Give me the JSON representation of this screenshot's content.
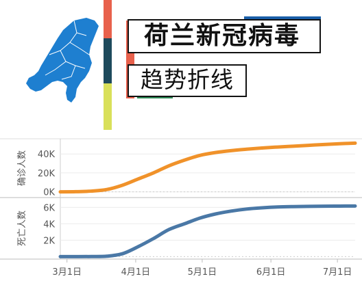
{
  "header": {
    "title": "荷兰新冠病毒",
    "subtitle": "趋势折线"
  },
  "colors": {
    "confirmed": "#f0922a",
    "deaths": "#4a78a6",
    "map": "#1e7fd0",
    "bar_red": "#e8614c",
    "bar_navy": "#1e4a5c",
    "bar_green": "#d9e05a",
    "accent_blue": "#1a5fa8",
    "accent_green": "#2e8b57"
  },
  "chart_data": [
    {
      "type": "line",
      "ylabel": "确诊人数",
      "yticks": [
        0,
        20000,
        40000
      ],
      "ytick_labels": [
        "0K",
        "20K",
        "40K"
      ],
      "ylim": [
        -6000,
        56000
      ],
      "xlim": [
        "2020-02-27",
        "2020-07-09"
      ],
      "series": [
        {
          "x": [
            "2020-02-27",
            "2020-03-05",
            "2020-03-12",
            "2020-03-19",
            "2020-03-26",
            "2020-04-02",
            "2020-04-09",
            "2020-04-16",
            "2020-04-23",
            "2020-04-30",
            "2020-05-07",
            "2020-05-14",
            "2020-05-21",
            "2020-05-28",
            "2020-06-04",
            "2020-06-11",
            "2020-06-18",
            "2020-06-25",
            "2020-07-02",
            "2020-07-09"
          ],
          "y": [
            0,
            200,
            800,
            2500,
            7000,
            13500,
            20000,
            27500,
            33500,
            38500,
            41500,
            43500,
            45000,
            46300,
            47300,
            48200,
            49100,
            50000,
            50800,
            51400
          ]
        }
      ]
    },
    {
      "type": "line",
      "ylabel": "死亡人数",
      "yticks": [
        2000,
        4000,
        6000
      ],
      "ytick_labels": [
        "2K",
        "4K",
        "6K"
      ],
      "ylim": [
        -300,
        7200
      ],
      "xlim": [
        "2020-02-27",
        "2020-07-09"
      ],
      "xtick_labels": [
        "3月1日",
        "4月1日",
        "5月1日",
        "6月1日",
        "7月1日"
      ],
      "series": [
        {
          "x": [
            "2020-02-27",
            "2020-03-05",
            "2020-03-12",
            "2020-03-19",
            "2020-03-26",
            "2020-04-02",
            "2020-04-09",
            "2020-04-16",
            "2020-04-23",
            "2020-04-30",
            "2020-05-07",
            "2020-05-14",
            "2020-05-21",
            "2020-05-28",
            "2020-06-04",
            "2020-06-11",
            "2020-06-18",
            "2020-06-25",
            "2020-07-02",
            "2020-07-09"
          ],
          "y": [
            0,
            0,
            10,
            50,
            350,
            1200,
            2200,
            3300,
            4000,
            4700,
            5200,
            5550,
            5800,
            5950,
            6050,
            6100,
            6130,
            6150,
            6160,
            6170
          ]
        }
      ]
    }
  ]
}
